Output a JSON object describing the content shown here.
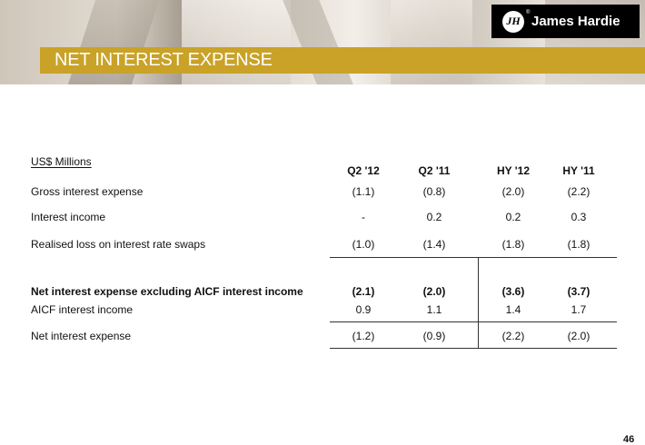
{
  "header": {
    "title": "NET INTEREST EXPENSE",
    "logo_mark": "JH",
    "logo_text": "James Hardie",
    "logo_reg": "®",
    "accent_color": "#c9a227"
  },
  "table": {
    "units_label": "US$ Millions",
    "columns": [
      "Q2 '12",
      "Q2 '11",
      "HY '12",
      "HY '11"
    ],
    "rows": [
      {
        "label": "Gross interest expense",
        "values": [
          "(1.1)",
          "(0.8)",
          "(2.0)",
          "(2.2)"
        ]
      },
      {
        "label": "Interest income",
        "values": [
          "-",
          "0.2",
          "0.2",
          "0.3"
        ]
      },
      {
        "label": "Realised loss on interest rate swaps",
        "values": [
          "(1.0)",
          "(1.4)",
          "(1.8)",
          "(1.8)"
        ]
      },
      {
        "label": "Net interest expense excluding AICF interest income",
        "values": [
          "(2.1)",
          "(2.0)",
          "(3.6)",
          "(3.7)"
        ]
      },
      {
        "label": "AICF interest income",
        "values": [
          "0.9",
          "1.1",
          "1.4",
          "1.7"
        ]
      },
      {
        "label": "Net interest expense",
        "values": [
          "(1.2)",
          "(0.9)",
          "(2.2)",
          "(2.0)"
        ]
      }
    ]
  },
  "footer": {
    "page_number": "46"
  }
}
